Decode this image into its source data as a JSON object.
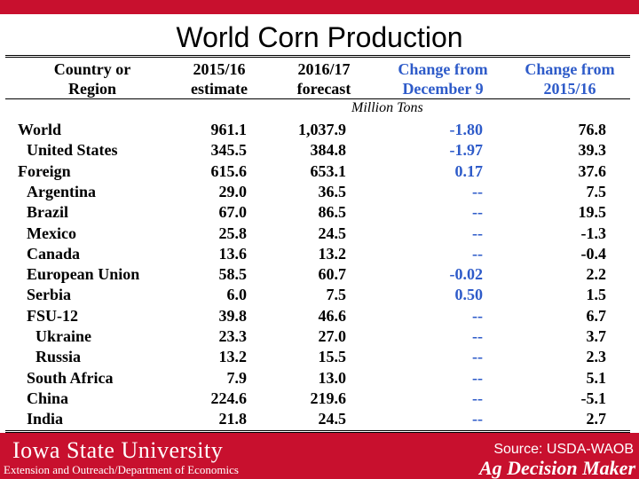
{
  "slide": {
    "title": "World Corn Production"
  },
  "table": {
    "headers": {
      "col1_line1": "Country or",
      "col1_line2": "Region",
      "col2_line1": "2015/16",
      "col2_line2": "estimate",
      "col3_line1": "2016/17",
      "col3_line2": "forecast",
      "col4_line1": "Change from",
      "col4_line2": "December 9",
      "col5_line1": "Change from",
      "col5_line2": "2015/16"
    },
    "units": "Million Tons",
    "rows": [
      {
        "name": "World",
        "indent": 0,
        "est": "961.1",
        "fc": "1,037.9",
        "chg_dec": "-1.80",
        "chg_prev": "76.8"
      },
      {
        "name": "United States",
        "indent": 1,
        "est": "345.5",
        "fc": "384.8",
        "chg_dec": "-1.97",
        "chg_prev": "39.3"
      },
      {
        "name": "Foreign",
        "indent": 0,
        "est": "615.6",
        "fc": "653.1",
        "chg_dec": "0.17",
        "chg_prev": "37.6"
      },
      {
        "name": "Argentina",
        "indent": 1,
        "est": "29.0",
        "fc": "36.5",
        "chg_dec": "--",
        "chg_prev": "7.5"
      },
      {
        "name": "Brazil",
        "indent": 1,
        "est": "67.0",
        "fc": "86.5",
        "chg_dec": "--",
        "chg_prev": "19.5"
      },
      {
        "name": "Mexico",
        "indent": 1,
        "est": "25.8",
        "fc": "24.5",
        "chg_dec": "--",
        "chg_prev": "-1.3"
      },
      {
        "name": "Canada",
        "indent": 1,
        "est": "13.6",
        "fc": "13.2",
        "chg_dec": "--",
        "chg_prev": "-0.4"
      },
      {
        "name": "European Union",
        "indent": 1,
        "est": "58.5",
        "fc": "60.7",
        "chg_dec": "-0.02",
        "chg_prev": "2.2"
      },
      {
        "name": "Serbia",
        "indent": 1,
        "est": "6.0",
        "fc": "7.5",
        "chg_dec": "0.50",
        "chg_prev": "1.5"
      },
      {
        "name": "FSU-12",
        "indent": 1,
        "est": "39.8",
        "fc": "46.6",
        "chg_dec": "--",
        "chg_prev": "6.7"
      },
      {
        "name": "Ukraine",
        "indent": 2,
        "est": "23.3",
        "fc": "27.0",
        "chg_dec": "--",
        "chg_prev": "3.7"
      },
      {
        "name": "Russia",
        "indent": 2,
        "est": "13.2",
        "fc": "15.5",
        "chg_dec": "--",
        "chg_prev": "2.3"
      },
      {
        "name": "South Africa",
        "indent": 1,
        "est": "7.9",
        "fc": "13.0",
        "chg_dec": "--",
        "chg_prev": "5.1"
      },
      {
        "name": "China",
        "indent": 1,
        "est": "224.6",
        "fc": "219.6",
        "chg_dec": "--",
        "chg_prev": "-5.1"
      },
      {
        "name": "India",
        "indent": 1,
        "est": "21.8",
        "fc": "24.5",
        "chg_dec": "--",
        "chg_prev": "2.7"
      }
    ]
  },
  "footer": {
    "university": "Iowa State University",
    "department": "Extension and Outreach/Department of Economics",
    "source": "Source: USDA-WAOB",
    "brand": "Ag Decision Maker"
  },
  "colors": {
    "brand_red": "#c8102e",
    "header_blue": "#2e5bc9"
  }
}
